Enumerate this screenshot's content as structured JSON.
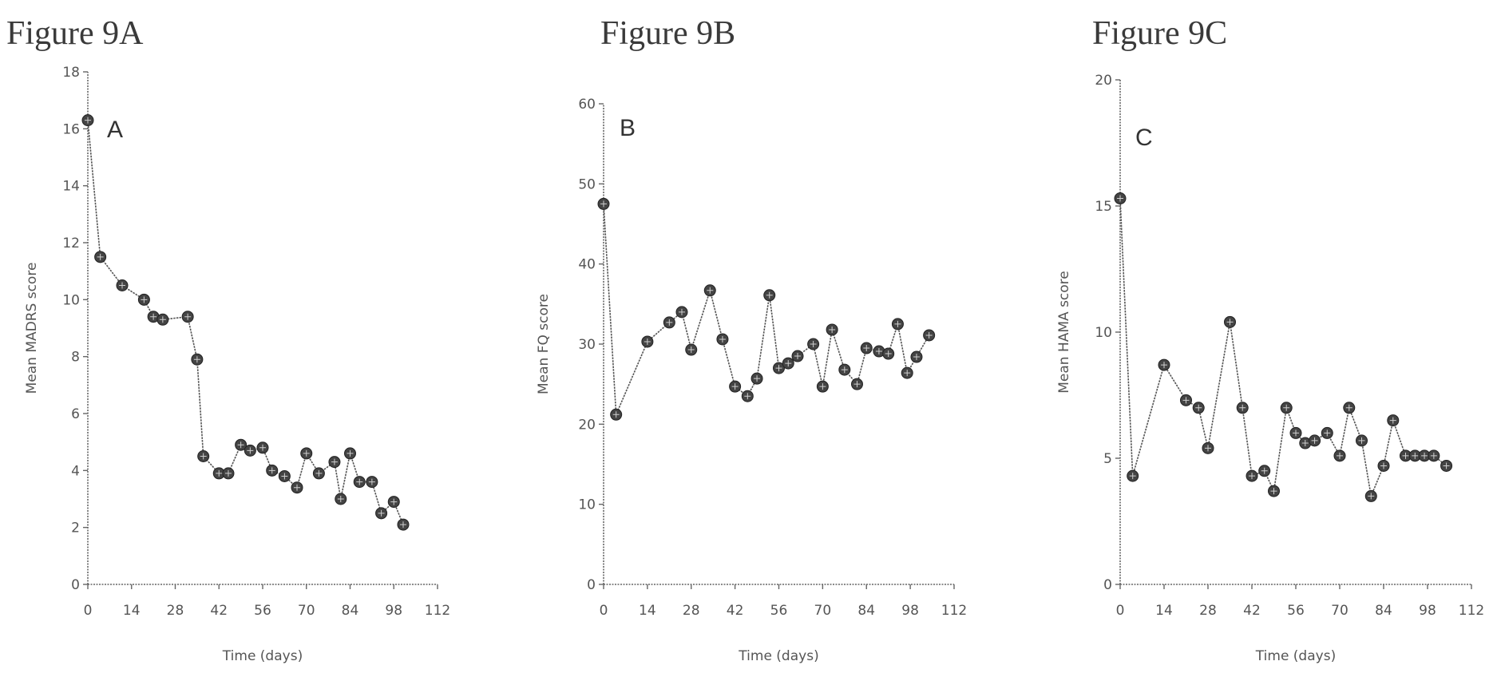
{
  "titles": {
    "a": "Figure 9A",
    "b": "Figure 9B",
    "c": "Figure 9C"
  },
  "chart_data": [
    {
      "type": "line",
      "panel_label": "A",
      "xlabel": "Time (days)",
      "ylabel": "Mean MADRS score",
      "xlim": [
        0,
        112
      ],
      "ylim": [
        0,
        18
      ],
      "xticks": [
        0,
        14,
        28,
        42,
        56,
        70,
        84,
        98,
        112
      ],
      "yticks": [
        0,
        2,
        4,
        6,
        8,
        10,
        12,
        14,
        16,
        18
      ],
      "grid": false,
      "series": [
        {
          "x": [
            0,
            4,
            11,
            18,
            21,
            24,
            32,
            35,
            37,
            42,
            45,
            49,
            52,
            56,
            59,
            63,
            67,
            70,
            74,
            79,
            81,
            84,
            87,
            91,
            94,
            98,
            101
          ],
          "y": [
            16.3,
            11.5,
            10.5,
            10.0,
            9.4,
            9.3,
            9.4,
            7.9,
            4.5,
            3.9,
            3.9,
            4.9,
            4.7,
            4.8,
            4.0,
            3.8,
            3.4,
            4.6,
            3.9,
            4.3,
            3.0,
            4.6,
            3.6,
            3.6,
            2.5,
            2.9,
            2.1
          ]
        }
      ]
    },
    {
      "type": "line",
      "panel_label": "B",
      "xlabel": "Time (days)",
      "ylabel": "Mean FQ score",
      "xlim": [
        0,
        112
      ],
      "ylim": [
        0,
        60
      ],
      "xticks": [
        0,
        14,
        28,
        42,
        56,
        70,
        84,
        98,
        112
      ],
      "yticks": [
        0,
        10,
        20,
        30,
        40,
        50,
        60
      ],
      "grid": false,
      "series": [
        {
          "x": [
            0,
            4,
            14,
            21,
            25,
            28,
            34,
            38,
            42,
            46,
            49,
            53,
            56,
            59,
            62,
            67,
            70,
            73,
            77,
            81,
            84,
            88,
            91,
            94,
            97,
            100,
            104
          ],
          "y": [
            47.5,
            21.2,
            30.3,
            32.7,
            34.0,
            29.3,
            36.7,
            30.6,
            24.7,
            23.5,
            25.7,
            36.1,
            27.0,
            27.6,
            28.5,
            30.0,
            24.7,
            31.8,
            26.8,
            25.0,
            29.5,
            29.1,
            28.8,
            32.5,
            26.4,
            28.4,
            31.1
          ]
        }
      ]
    },
    {
      "type": "line",
      "panel_label": "C",
      "xlabel": "Time (days)",
      "ylabel": "Mean HAMA score",
      "xlim": [
        0,
        112
      ],
      "ylim": [
        0,
        20
      ],
      "xticks": [
        0,
        14,
        28,
        42,
        56,
        70,
        84,
        98,
        112
      ],
      "yticks": [
        0,
        5,
        10,
        15,
        20
      ],
      "grid": false,
      "series": [
        {
          "x": [
            0,
            4,
            14,
            21,
            25,
            28,
            35,
            39,
            42,
            46,
            49,
            53,
            56,
            59,
            62,
            66,
            70,
            73,
            77,
            80,
            84,
            87,
            91,
            94,
            97,
            100,
            104
          ],
          "y": [
            15.3,
            4.3,
            8.7,
            7.3,
            7.0,
            5.4,
            10.4,
            7.0,
            4.3,
            4.5,
            3.7,
            7.0,
            6.0,
            5.6,
            5.7,
            6.0,
            5.1,
            7.0,
            5.7,
            3.5,
            4.7,
            6.5,
            5.1,
            5.1,
            5.1,
            5.1,
            4.7
          ]
        }
      ]
    }
  ]
}
